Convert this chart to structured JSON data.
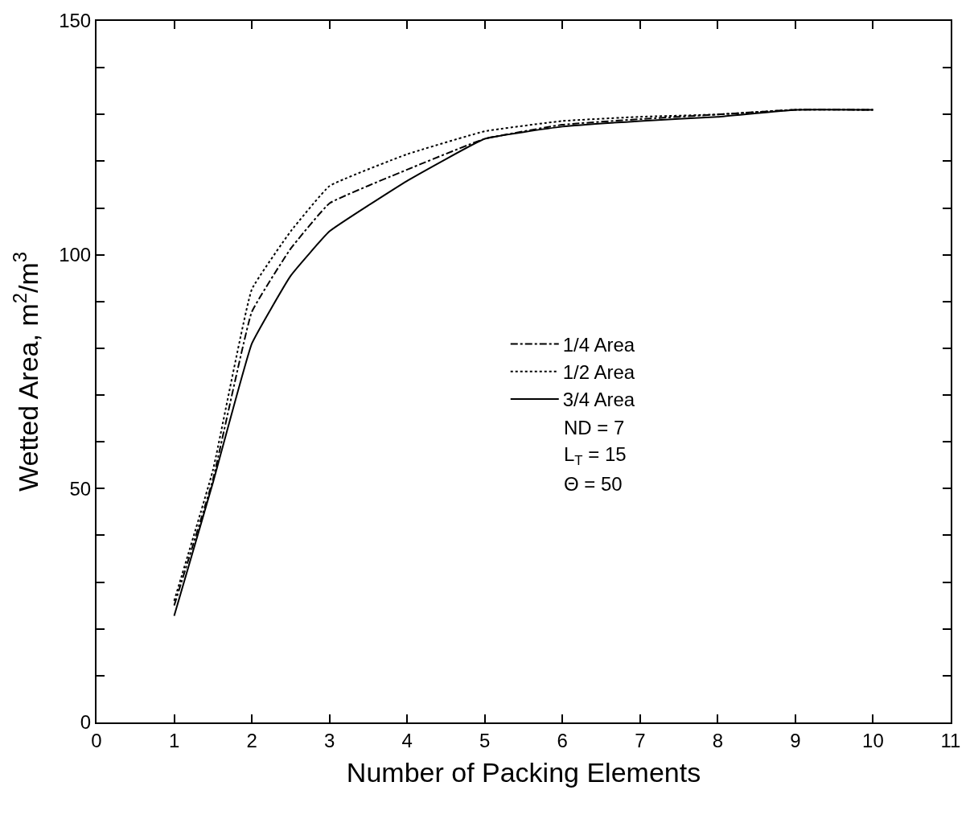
{
  "chart_data": {
    "type": "line",
    "xlabel": "Number of Packing Elements",
    "ylabel": "Wetted Area, m$^{2}$/m$^{3}$",
    "xlim": [
      0,
      11
    ],
    "xticks": [
      0,
      1,
      2,
      3,
      4,
      5,
      6,
      7,
      8,
      9,
      10,
      11
    ],
    "ylim": [
      0,
      150
    ],
    "yticks": [
      0,
      {
        "value": 10,
        "label": null
      },
      {
        "value": 20,
        "label": null
      },
      {
        "value": 30,
        "label": null
      },
      {
        "value": 40,
        "label": null
      },
      50,
      {
        "value": 60,
        "label": null
      },
      {
        "value": 70,
        "label": null
      },
      {
        "value": 80,
        "label": null
      },
      {
        "value": 90,
        "label": null
      },
      100,
      {
        "value": 110,
        "label": null
      },
      {
        "value": 120,
        "label": null
      },
      {
        "value": 130,
        "label": null
      },
      {
        "value": 140,
        "label": null
      },
      150
    ],
    "x": [
      1,
      1.5,
      2,
      2.5,
      3,
      4,
      5,
      6,
      7,
      8,
      9,
      10
    ],
    "series": [
      {
        "name": "1/4 Area",
        "color": "#000000",
        "line_style": "dashed",
        "values": [
          25,
          52,
          87.8,
          101.3,
          111,
          118.2,
          124.8,
          127.8,
          129,
          130,
          131,
          131
        ]
      },
      {
        "name": "1/2 Area",
        "color": "#000000",
        "line_style": "dotted",
        "values": [
          26,
          54,
          92.6,
          105,
          114.7,
          121.5,
          126.4,
          128.6,
          129.5,
          130,
          131,
          131
        ]
      },
      {
        "name": "3/4 Area",
        "color": "#000000",
        "line_style": "solid",
        "values": [
          22.8,
          51.3,
          81,
          95.5,
          105,
          115.8,
          124.8,
          127.4,
          128.6,
          129.5,
          131,
          131
        ]
      }
    ],
    "legend": "right",
    "marker": "none",
    "annotations": [
      "ND = 7",
      "L$_{T}$ = 15",
      "Θ = 50"
    ]
  }
}
